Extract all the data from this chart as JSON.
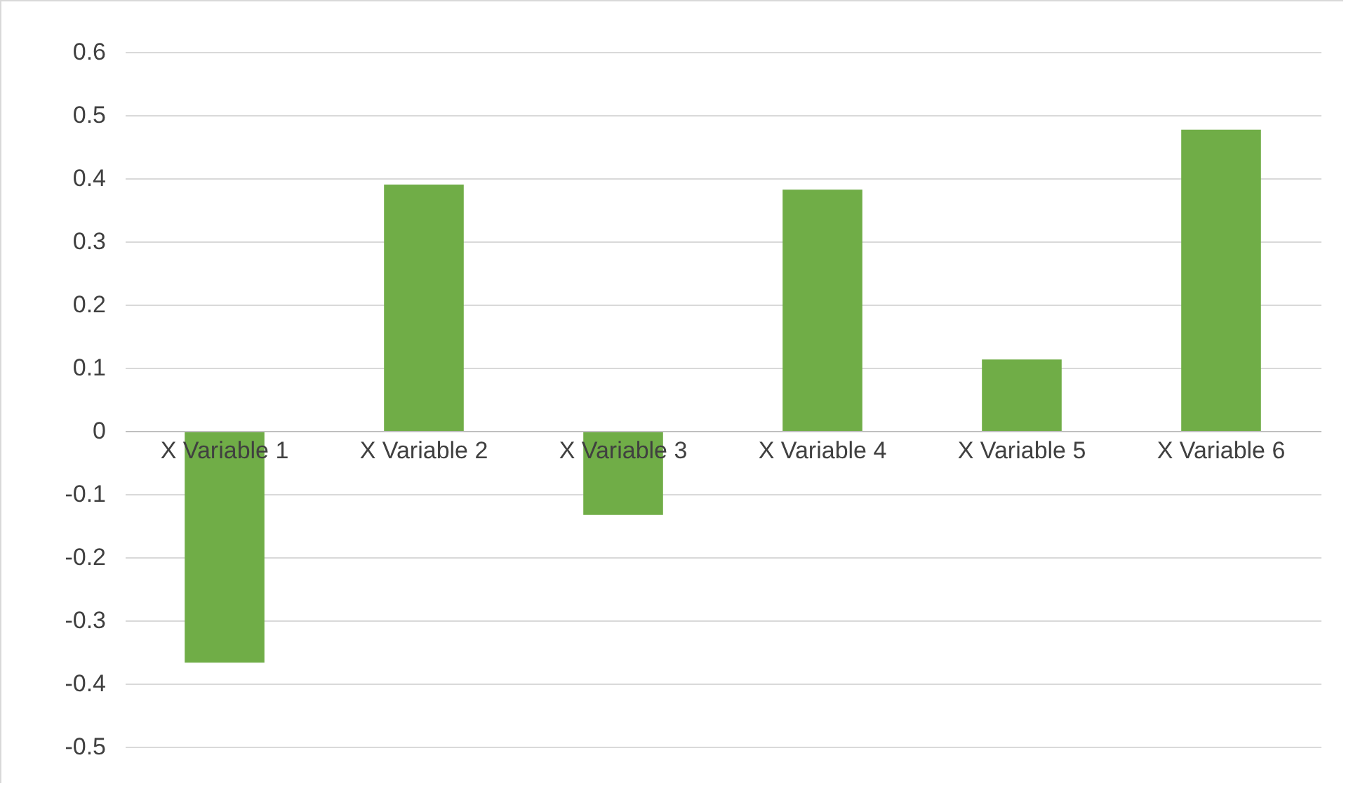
{
  "chart_data": {
    "type": "bar",
    "categories": [
      "X Variable 1",
      "X Variable 2",
      "X Variable 3",
      "X Variable 4",
      "X Variable 5",
      "X Variable 6"
    ],
    "values": [
      -0.367,
      0.39,
      -0.133,
      0.382,
      0.113,
      0.477
    ],
    "color": "#70ad47",
    "ylim": [
      -0.5,
      0.6
    ],
    "yticks": [
      -0.5,
      -0.4,
      -0.3,
      -0.2,
      -0.1,
      0,
      0.1,
      0.2,
      0.3,
      0.4,
      0.5,
      0.6
    ],
    "grid": true
  }
}
